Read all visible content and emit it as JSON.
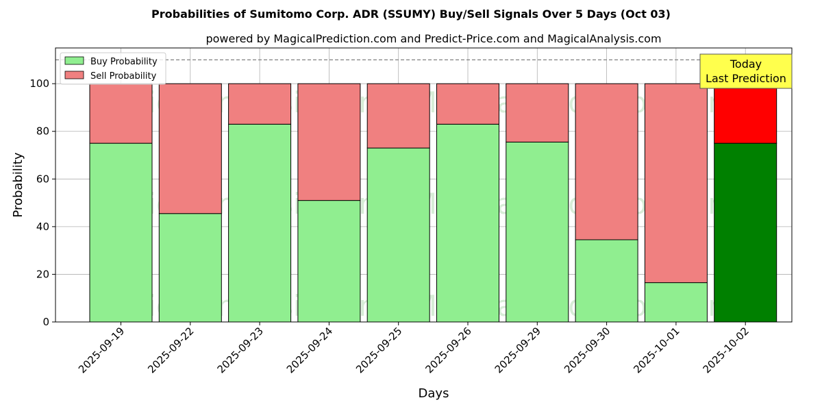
{
  "chart_data": {
    "type": "bar",
    "stacked": true,
    "title": "Probabilities of Sumitomo Corp. ADR (SSUMY) Buy/Sell Signals Over 5 Days (Oct 03)",
    "subtitle": "powered by MagicalPrediction.com and Predict-Price.com and MagicalAnalysis.com",
    "xlabel": "Days",
    "ylabel": "Probability",
    "ylim": [
      0,
      115
    ],
    "yticks": [
      0,
      20,
      40,
      60,
      80,
      100
    ],
    "categories": [
      "2025-09-19",
      "2025-09-22",
      "2025-09-23",
      "2025-09-24",
      "2025-09-25",
      "2025-09-26",
      "2025-09-29",
      "2025-09-30",
      "2025-10-01",
      "2025-10-02"
    ],
    "series": [
      {
        "name": "Buy Probability",
        "values": [
          75,
          45.5,
          83,
          51,
          73,
          83,
          75.5,
          34.5,
          16.5,
          75
        ],
        "color": "#90ee90",
        "highlight_color": "#008000"
      },
      {
        "name": "Sell Probability",
        "values": [
          25,
          54.5,
          17,
          49,
          27,
          17,
          24.5,
          65.5,
          83.5,
          25
        ],
        "color": "#f08080",
        "highlight_color": "#ff0000"
      }
    ],
    "highlight_index": 9,
    "reference_line": 110,
    "legend_position": "top-left",
    "grid": true,
    "annotation": {
      "line1": "Today",
      "line2": "Last Prediction",
      "background": "#ffff4d"
    },
    "watermarks": [
      "MagicalAnalysis.com",
      "MagicalPrediction.com"
    ]
  }
}
